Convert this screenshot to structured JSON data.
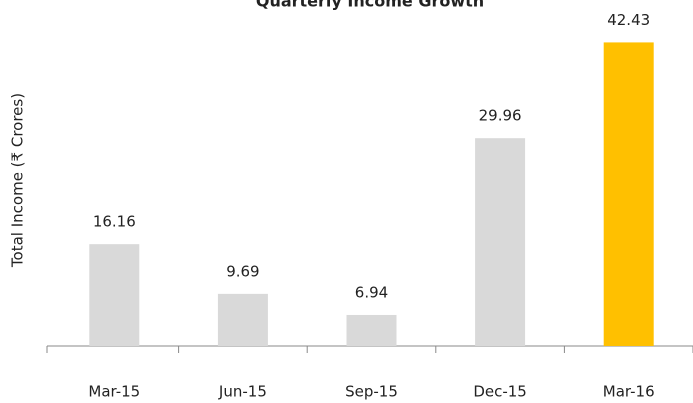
{
  "chart_data": {
    "type": "bar",
    "title": "Quarterly Income Growth",
    "y_label": "Total Income (₹ Crores)",
    "categories": [
      "Mar-15",
      "Jun-15",
      "Sep-15",
      "Dec-15",
      "Mar-16"
    ],
    "values": [
      16.16,
      9.69,
      6.94,
      29.96,
      42.43
    ],
    "colors": [
      "#d9d9d9",
      "#d9d9d9",
      "#d9d9d9",
      "#d9d9d9",
      "#ffc000"
    ],
    "ylim": [
      2.9,
      46
    ]
  }
}
